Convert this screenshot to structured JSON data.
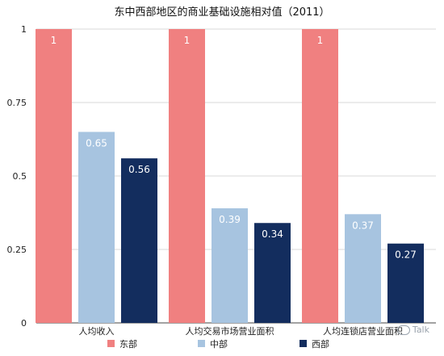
{
  "chart_data": {
    "type": "bar",
    "title": "东中西部地区的商业基础设施相对值（2011）",
    "xlabel": "",
    "ylabel": "",
    "ylim": [
      0,
      1
    ],
    "yticks": [
      "0",
      "0.25",
      "0.5",
      "0.75",
      "1"
    ],
    "grid": true,
    "legend_position": "bottom",
    "categories": [
      "人均收入",
      "人均交易市场营业面积",
      "人均连锁店营业面积"
    ],
    "series": [
      {
        "name": "东部",
        "values": [
          1,
          1,
          1
        ],
        "labels": [
          "1",
          "1",
          "1"
        ],
        "color": "#f08080"
      },
      {
        "name": "中部",
        "values": [
          0.65,
          0.39,
          0.37
        ],
        "labels": [
          "0.65",
          "0.39",
          "0.37"
        ],
        "color": "#a7c4e0"
      },
      {
        "name": "西部",
        "values": [
          0.56,
          0.34,
          0.27
        ],
        "labels": [
          "0.56",
          "0.34",
          "0.27"
        ],
        "color": "#132d5e"
      }
    ]
  },
  "watermark": {
    "text": "Talk",
    "icon": "chat-bubble-icon"
  }
}
